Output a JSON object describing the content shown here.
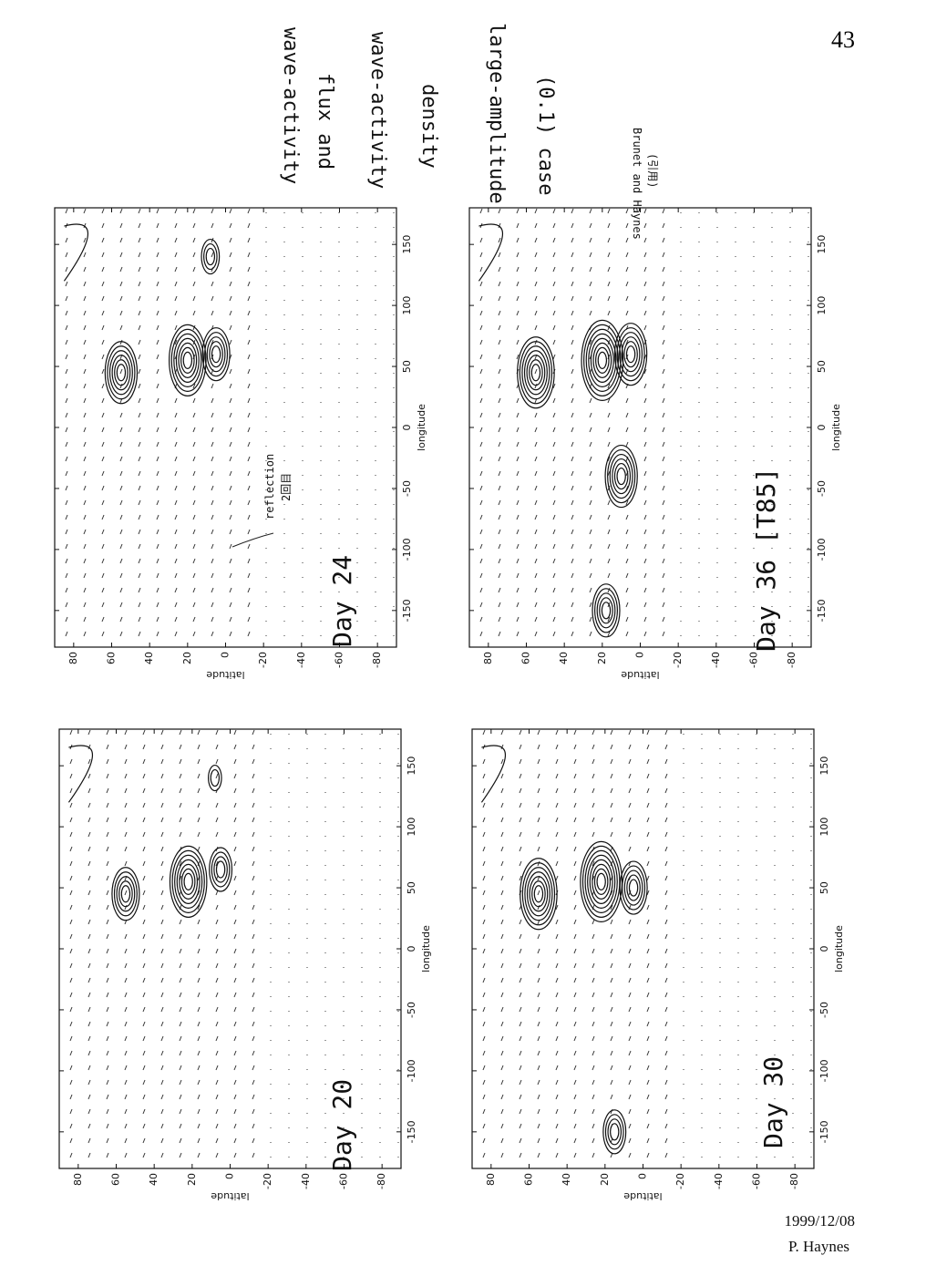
{
  "page_number": "43",
  "notes": [
    "wave-activity",
    "flux and",
    "wave-activity",
    "density",
    "large-amplitude",
    "(0.1) case"
  ],
  "citation": {
    "text": "Brunet and Haynes",
    "note": "(引用)"
  },
  "annotation": {
    "text": "reflection",
    "note": "2回目"
  },
  "axes": {
    "xlabel": "longitude",
    "ylabel": "latitude",
    "xticks": [
      -150,
      -100,
      -50,
      0,
      50,
      100,
      150
    ],
    "yticks": [
      80,
      60,
      40,
      20,
      0,
      -20,
      -40,
      -60,
      -80
    ]
  },
  "panels": [
    {
      "label": "Day 24"
    },
    {
      "label": "Day 36 [T85]"
    },
    {
      "label": "Day 20"
    },
    {
      "label": "Day 30"
    }
  ],
  "footer": {
    "date": "1999/12/08",
    "author": "P. Haynes"
  }
}
